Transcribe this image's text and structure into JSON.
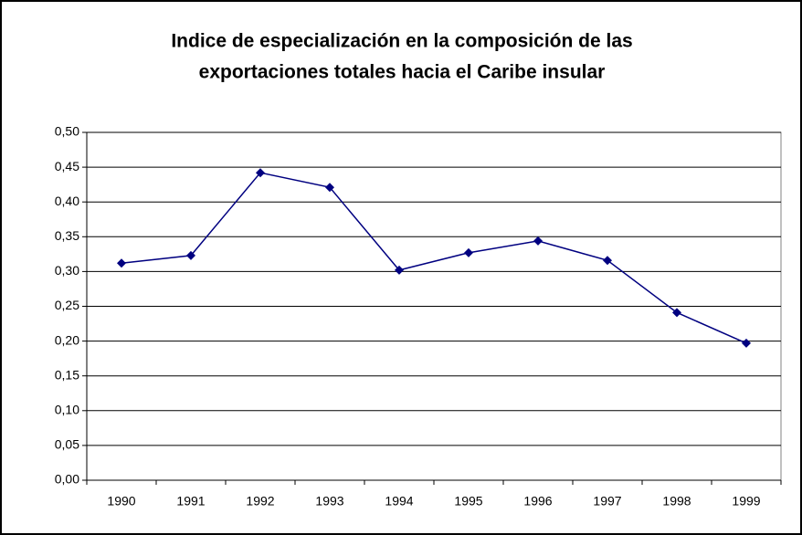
{
  "chart_data": {
    "type": "line",
    "title": [
      "Indice de especialización en la composición de las",
      "exportaciones totales hacia el Caribe insular"
    ],
    "categories": [
      "1990",
      "1991",
      "1992",
      "1993",
      "1994",
      "1995",
      "1996",
      "1997",
      "1998",
      "1999"
    ],
    "values": [
      0.312,
      0.323,
      0.442,
      0.421,
      0.302,
      0.327,
      0.344,
      0.316,
      0.241,
      0.197
    ],
    "color": "#000080",
    "ylim": [
      0,
      0.5
    ],
    "yticks": [
      {
        "value": 0,
        "label": "0,00"
      },
      {
        "value": 0.05,
        "label": "0,05"
      },
      {
        "value": 0.1,
        "label": "0,10"
      },
      {
        "value": 0.15,
        "label": "0,15"
      },
      {
        "value": 0.2,
        "label": "0,20"
      },
      {
        "value": 0.25,
        "label": "0,25"
      },
      {
        "value": 0.3,
        "label": "0,30"
      },
      {
        "value": 0.35,
        "label": "0,35"
      },
      {
        "value": 0.4,
        "label": "0,40"
      },
      {
        "value": 0.45,
        "label": "0,45"
      },
      {
        "value": 0.5,
        "label": "0,50"
      }
    ],
    "grid": true
  }
}
